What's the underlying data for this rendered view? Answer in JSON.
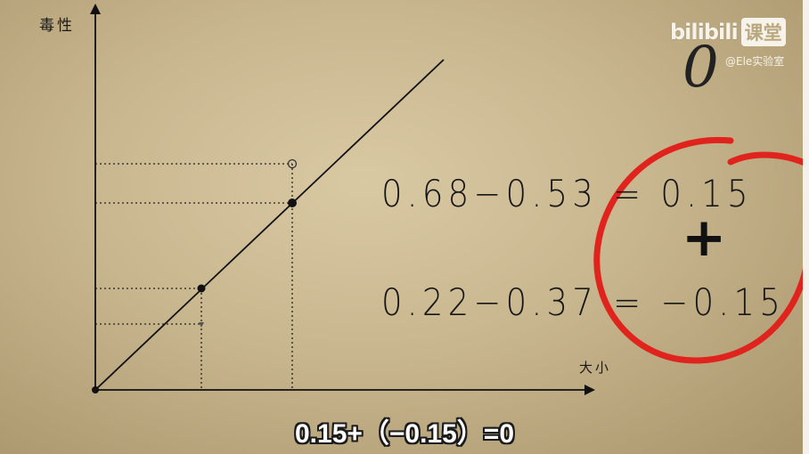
{
  "axes": {
    "y_label": "毒性",
    "x_label": "大小"
  },
  "equations": [
    "0.68−0.53 = 0.15",
    "0.22−0.37 = −0.15"
  ],
  "plus_symbol": "+",
  "scribble": "0",
  "logo": {
    "text": "bilibili",
    "badge": "课堂"
  },
  "watermark": "@Ele实验室",
  "caption": "0.15+（−0.15）=0",
  "colors": {
    "background": "#c8b68e",
    "ink": "#111111",
    "circle": "#e0231c"
  }
}
